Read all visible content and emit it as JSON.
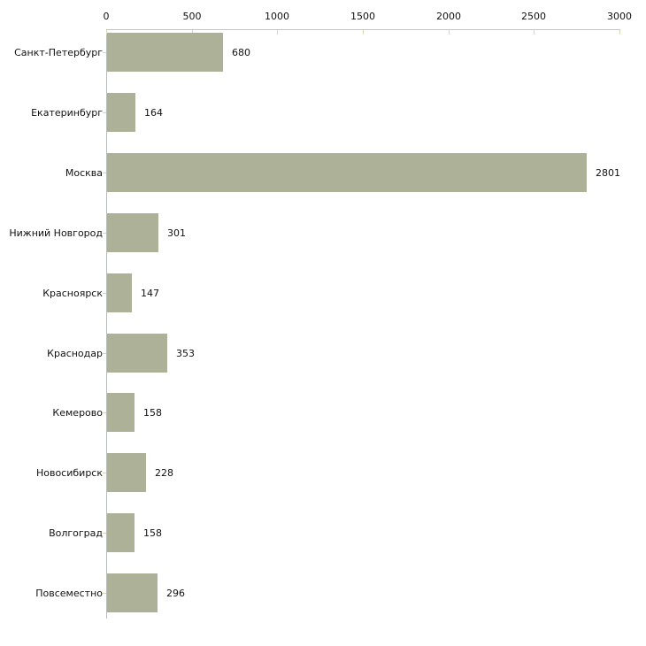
{
  "chart_data": {
    "type": "bar",
    "orientation": "horizontal",
    "title": "",
    "xlabel": "",
    "ylabel": "",
    "categories": [
      "Санкт-Петербург",
      "Екатеринбург",
      "Москва",
      "Нижний Новгород",
      "Красноярск",
      "Краснодар",
      "Кемерово",
      "Новосибирск",
      "Волгоград",
      "Повсеместно"
    ],
    "values": [
      680,
      164,
      2801,
      301,
      147,
      353,
      158,
      228,
      158,
      296
    ],
    "value_labels": [
      "680",
      "164",
      "2801",
      "301",
      "147",
      "353",
      "158",
      "228",
      "158",
      "296"
    ],
    "x_ticks": [
      0,
      500,
      1000,
      1500,
      2000,
      2500,
      3000
    ],
    "x_tick_labels": [
      "0",
      "500",
      "1000",
      "1500",
      "2000",
      "2500",
      "3000"
    ],
    "xlim": [
      0,
      3000
    ],
    "grid": false,
    "legend": "none",
    "axis_position": "top",
    "colors": {
      "bar_fill": "#acb197",
      "axis_line": "#c6c6c6",
      "y_axis_line": "#b9bdb9",
      "tick_mark": "#d5d8b2",
      "text": "#111111",
      "background": "#ffffff"
    }
  }
}
